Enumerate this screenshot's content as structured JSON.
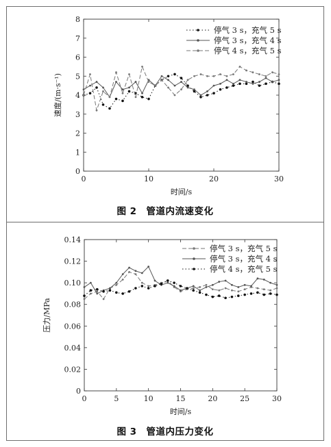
{
  "chart_data": [
    {
      "type": "line",
      "caption": "图 2　管道内流速变化",
      "xlabel": "时间/s",
      "ylabel": "速度/(m·s⁻¹)",
      "xlim": [
        0,
        30
      ],
      "ylim": [
        0,
        8
      ],
      "xticks": [
        "0",
        "10",
        "20",
        "30"
      ],
      "yticks": [
        "0",
        "1",
        "2",
        "3",
        "4",
        "5",
        "6",
        "7",
        "8"
      ],
      "grid": false,
      "legend_position": "top-right",
      "x": [
        0,
        1,
        2,
        3,
        4,
        5,
        6,
        7,
        8,
        9,
        10,
        11,
        12,
        13,
        14,
        15,
        16,
        17,
        18,
        19,
        20,
        21,
        22,
        23,
        24,
        25,
        26,
        27,
        28,
        29,
        30
      ],
      "series": [
        {
          "name": "停气 3 s，充气 5 s",
          "style": "dotted-markers",
          "color": "#111111",
          "values": [
            4.0,
            4.1,
            4.4,
            3.5,
            3.3,
            3.8,
            3.7,
            4.2,
            4.1,
            3.9,
            3.8,
            4.5,
            4.8,
            5.0,
            5.1,
            4.9,
            4.5,
            4.2,
            3.9,
            4.0,
            4.1,
            4.3,
            4.4,
            4.5,
            4.6,
            4.6,
            4.7,
            4.5,
            4.6,
            4.7,
            4.6
          ]
        },
        {
          "name": "停气 3 s，充气 4 s",
          "style": "solid-markers",
          "color": "#555555",
          "values": [
            4.3,
            4.5,
            4.7,
            4.4,
            3.9,
            4.7,
            4.3,
            4.4,
            4.7,
            4.1,
            4.8,
            4.5,
            5.0,
            4.8,
            4.5,
            4.7,
            4.4,
            4.3,
            4.0,
            4.2,
            4.5,
            4.6,
            4.8,
            4.6,
            4.8,
            4.7,
            4.6,
            4.7,
            4.9,
            4.7,
            4.8
          ]
        },
        {
          "name": "停气 4 s，充气 5 s",
          "style": "dashed-markers",
          "color": "#777777",
          "values": [
            4.0,
            5.1,
            3.2,
            4.2,
            3.9,
            5.2,
            4.1,
            5.1,
            3.9,
            5.5,
            4.7,
            4.5,
            4.8,
            4.4,
            4.0,
            4.3,
            4.8,
            5.0,
            5.1,
            5.0,
            5.0,
            5.1,
            5.0,
            5.1,
            5.5,
            5.3,
            5.2,
            5.1,
            5.0,
            5.2,
            5.1
          ]
        }
      ]
    },
    {
      "type": "line",
      "caption": "图 3　管道内压力变化",
      "xlabel": "时间/s",
      "ylabel": "压力/MPa",
      "xlim": [
        0,
        30
      ],
      "ylim": [
        0,
        0.14
      ],
      "xticks": [
        "0",
        "5",
        "10",
        "15",
        "20",
        "25",
        "30"
      ],
      "yticks": [
        "0",
        "0.02",
        "0.04",
        "0.06",
        "0.08",
        "0.10",
        "0.12",
        "0.14"
      ],
      "grid": false,
      "legend_position": "top-right",
      "x": [
        0,
        1,
        2,
        3,
        4,
        5,
        6,
        7,
        8,
        9,
        10,
        11,
        12,
        13,
        14,
        15,
        16,
        17,
        18,
        19,
        20,
        21,
        22,
        23,
        24,
        25,
        26,
        27,
        28,
        29,
        30
      ],
      "series": [
        {
          "name": "停气 3 s，充气 5 s",
          "style": "dashed-markers",
          "color": "#777777",
          "values": [
            0.085,
            0.09,
            0.092,
            0.085,
            0.095,
            0.098,
            0.103,
            0.11,
            0.108,
            0.1,
            0.097,
            0.098,
            0.1,
            0.102,
            0.096,
            0.092,
            0.094,
            0.095,
            0.096,
            0.098,
            0.094,
            0.093,
            0.095,
            0.093,
            0.092,
            0.094,
            0.096,
            0.095,
            0.094,
            0.093,
            0.095
          ]
        },
        {
          "name": "停气 3 s，充气 4 s",
          "style": "solid-markers",
          "color": "#555555",
          "values": [
            0.096,
            0.1,
            0.09,
            0.093,
            0.095,
            0.1,
            0.108,
            0.114,
            0.111,
            0.109,
            0.115,
            0.102,
            0.098,
            0.1,
            0.097,
            0.093,
            0.095,
            0.097,
            0.093,
            0.096,
            0.098,
            0.101,
            0.102,
            0.098,
            0.096,
            0.098,
            0.097,
            0.104,
            0.103,
            0.1,
            0.098
          ]
        },
        {
          "name": "停气 4 s，充气 5 s",
          "style": "dotted-markers",
          "color": "#111111",
          "values": [
            0.088,
            0.093,
            0.094,
            0.092,
            0.093,
            0.091,
            0.09,
            0.092,
            0.095,
            0.097,
            0.095,
            0.097,
            0.099,
            0.102,
            0.1,
            0.097,
            0.095,
            0.093,
            0.091,
            0.089,
            0.087,
            0.088,
            0.086,
            0.087,
            0.088,
            0.089,
            0.09,
            0.091,
            0.089,
            0.09,
            0.089
          ]
        }
      ]
    }
  ]
}
